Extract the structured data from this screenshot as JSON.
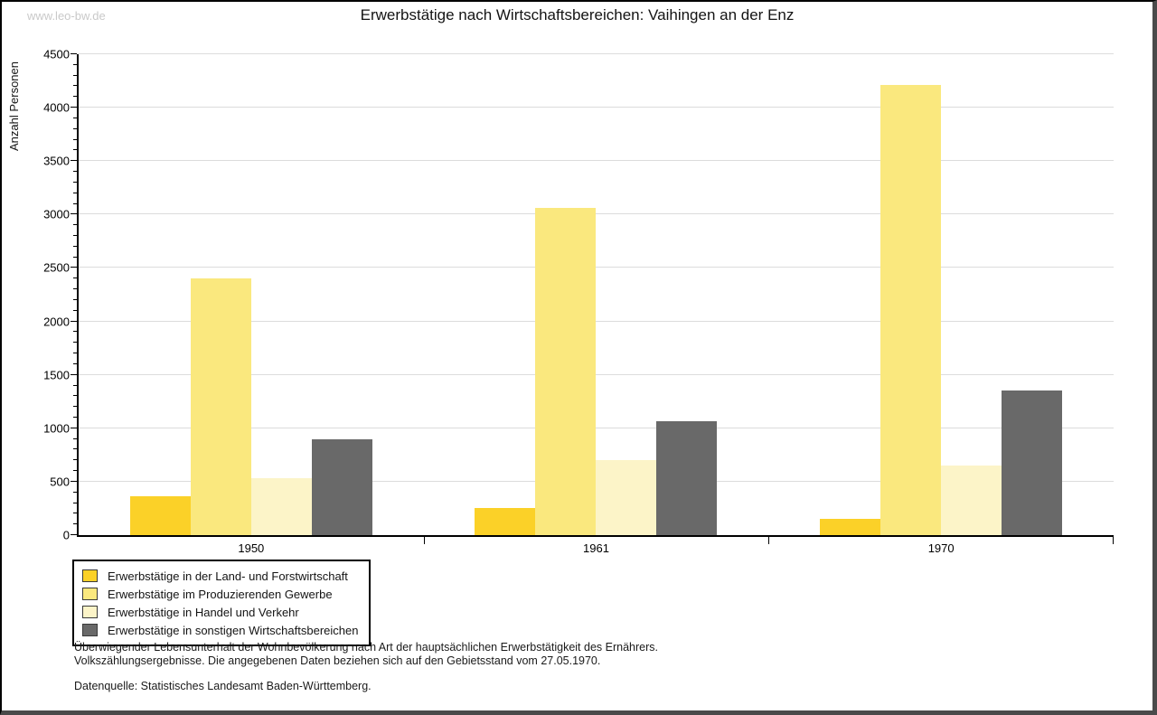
{
  "watermark": "www.leo-bw.de",
  "chart_data": {
    "type": "bar",
    "title": "Erwerbstätige nach Wirtschaftsbereichen: Vaihingen an der Enz",
    "xlabel": "",
    "ylabel": "Anzahl Personen",
    "categories": [
      "1950",
      "1961",
      "1970"
    ],
    "series": [
      {
        "name": "Erwerbstätige in der Land- und Forstwirtschaft",
        "color": "#FBD128",
        "values": [
          360,
          250,
          155
        ]
      },
      {
        "name": "Erwerbstätige im Produzierenden Gewerbe",
        "color": "#FAE87E",
        "values": [
          2400,
          3060,
          4210
        ]
      },
      {
        "name": "Erwerbstätige in Handel und Verkehr",
        "color": "#FCF4C8",
        "values": [
          535,
          700,
          655
        ]
      },
      {
        "name": "Erwerbstätige in sonstigen Wirtschaftsbereichen",
        "color": "#696969",
        "values": [
          900,
          1065,
          1355
        ]
      }
    ],
    "ylim": [
      0,
      4500
    ],
    "ytick_step": 500,
    "ytick_minor_step": 100,
    "ytick_labels": [
      "0",
      "500",
      "1000",
      "1500",
      "2000",
      "2500",
      "3000",
      "3500",
      "4000",
      "4500"
    ],
    "grid": true,
    "legend_position": "bottom-left",
    "axis_color": "#000000",
    "grid_color": "#DCDCDC"
  },
  "footnotes": {
    "line1": "Überwiegender Lebensunterhalt der Wohnbevölkerung nach Art der hauptsächlichen Erwerbstätigkeit des Ernährers.",
    "line2": "Volkszählungsergebnisse. Die angegebenen Daten beziehen sich auf den Gebietsstand vom 27.05.1970.",
    "source": "Datenquelle: Statistisches Landesamt Baden-Württemberg."
  }
}
